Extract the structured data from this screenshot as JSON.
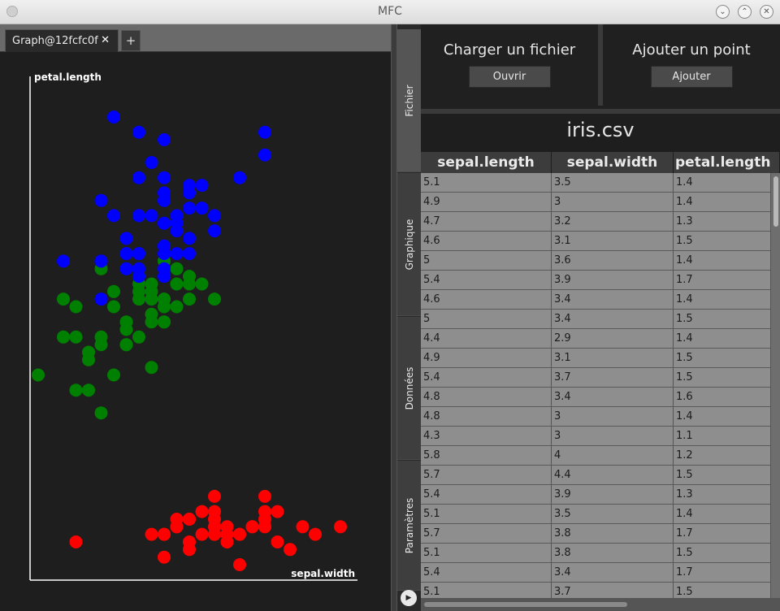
{
  "window": {
    "title": "MFC"
  },
  "tabs": [
    {
      "label": "Graph@12fcfc0f",
      "close": "✕"
    }
  ],
  "add_tab_label": "+",
  "side_tabs": [
    "Fichier",
    "Graphique",
    "Données",
    "Paramètres"
  ],
  "actions": {
    "load": {
      "title": "Charger un fichier",
      "button": "Ouvrir"
    },
    "add_point": {
      "title": "Ajouter un point",
      "button": "Ajouter"
    }
  },
  "file_name": "iris.csv",
  "table": {
    "columns": [
      "sepal.length",
      "sepal.width",
      "petal.length"
    ],
    "rows": [
      [
        "5.1",
        "3.5",
        "1.4"
      ],
      [
        "4.9",
        "3",
        "1.4"
      ],
      [
        "4.7",
        "3.2",
        "1.3"
      ],
      [
        "4.6",
        "3.1",
        "1.5"
      ],
      [
        "5",
        "3.6",
        "1.4"
      ],
      [
        "5.4",
        "3.9",
        "1.7"
      ],
      [
        "4.6",
        "3.4",
        "1.4"
      ],
      [
        "5",
        "3.4",
        "1.5"
      ],
      [
        "4.4",
        "2.9",
        "1.4"
      ],
      [
        "4.9",
        "3.1",
        "1.5"
      ],
      [
        "5.4",
        "3.7",
        "1.5"
      ],
      [
        "4.8",
        "3.4",
        "1.6"
      ],
      [
        "4.8",
        "3",
        "1.4"
      ],
      [
        "4.3",
        "3",
        "1.1"
      ],
      [
        "5.8",
        "4",
        "1.2"
      ],
      [
        "5.7",
        "4.4",
        "1.5"
      ],
      [
        "5.4",
        "3.9",
        "1.3"
      ],
      [
        "5.1",
        "3.5",
        "1.4"
      ],
      [
        "5.7",
        "3.8",
        "1.7"
      ],
      [
        "5.1",
        "3.8",
        "1.5"
      ],
      [
        "5.4",
        "3.4",
        "1.7"
      ],
      [
        "5.1",
        "3.7",
        "1.5"
      ]
    ]
  },
  "colors": {
    "setosa": "#ff0000",
    "versicolor": "#008000",
    "virginica": "#0000ff"
  },
  "chart_data": {
    "type": "scatter",
    "xlabel": "sepal.width",
    "ylabel": "petal.length",
    "xlim": [
      2.0,
      4.4
    ],
    "ylim": [
      1.0,
      6.9
    ],
    "grid": false,
    "series": [
      {
        "color": "#ff0000",
        "points": [
          [
            3.5,
            1.4
          ],
          [
            3,
            1.4
          ],
          [
            3.2,
            1.3
          ],
          [
            3.1,
            1.5
          ],
          [
            3.6,
            1.4
          ],
          [
            3.9,
            1.7
          ],
          [
            3.4,
            1.4
          ],
          [
            3.4,
            1.5
          ],
          [
            2.9,
            1.4
          ],
          [
            3.1,
            1.5
          ],
          [
            3.7,
            1.5
          ],
          [
            3.4,
            1.6
          ],
          [
            3,
            1.4
          ],
          [
            3,
            1.1
          ],
          [
            4,
            1.2
          ],
          [
            4.4,
            1.5
          ],
          [
            3.9,
            1.3
          ],
          [
            3.5,
            1.4
          ],
          [
            3.8,
            1.7
          ],
          [
            3.8,
            1.5
          ],
          [
            3.4,
            1.7
          ],
          [
            3.7,
            1.5
          ],
          [
            3.6,
            1
          ],
          [
            3.3,
            1.7
          ],
          [
            3.4,
            1.9
          ],
          [
            3.5,
            1.5
          ],
          [
            3.4,
            1.4
          ],
          [
            3.2,
            1.6
          ],
          [
            3.1,
            1.6
          ],
          [
            4.1,
            1.5
          ],
          [
            4.2,
            1.4
          ],
          [
            3.2,
            1.2
          ],
          [
            3.5,
            1.3
          ],
          [
            3.6,
            1.4
          ],
          [
            2.3,
            1.3
          ],
          [
            3.2,
            1.6
          ],
          [
            3.8,
            1.9
          ],
          [
            3.8,
            1.6
          ],
          [
            3.3,
            1.4
          ]
        ]
      },
      {
        "color": "#008000",
        "points": [
          [
            3.2,
            4.7
          ],
          [
            3.2,
            4.5
          ],
          [
            3.1,
            4.9
          ],
          [
            2.3,
            4
          ],
          [
            2.8,
            4.6
          ],
          [
            2.8,
            4.5
          ],
          [
            3.3,
            4.7
          ],
          [
            2.4,
            3.3
          ],
          [
            2.9,
            4.6
          ],
          [
            2.7,
            3.9
          ],
          [
            2,
            3.5
          ],
          [
            3,
            4.2
          ],
          [
            2.2,
            4
          ],
          [
            2.9,
            4.7
          ],
          [
            2.9,
            3.6
          ],
          [
            3.1,
            4.4
          ],
          [
            3,
            4.5
          ],
          [
            2.7,
            4.1
          ],
          [
            2.2,
            4.5
          ],
          [
            2.5,
            3.9
          ],
          [
            3.2,
            4.8
          ],
          [
            2.8,
            4
          ],
          [
            2.5,
            4.9
          ],
          [
            2.8,
            4.7
          ],
          [
            2.9,
            4.3
          ],
          [
            3,
            4.4
          ],
          [
            2.8,
            4.8
          ],
          [
            3,
            5
          ],
          [
            2.9,
            4.5
          ],
          [
            2.6,
            3.5
          ],
          [
            2.4,
            3.8
          ],
          [
            2.4,
            3.7
          ],
          [
            2.7,
            3.9
          ],
          [
            2.7,
            5.1
          ],
          [
            3,
            4.5
          ],
          [
            3.4,
            4.5
          ],
          [
            3.1,
            4.7
          ],
          [
            2.3,
            4.4
          ],
          [
            2.5,
            4
          ],
          [
            2.6,
            4.4
          ],
          [
            2.6,
            4.6
          ],
          [
            2.3,
            3.3
          ],
          [
            2.7,
            4.2
          ],
          [
            3,
            4.2
          ],
          [
            2.9,
            4.2
          ],
          [
            2.5,
            3
          ]
        ]
      },
      {
        "color": "#0000ff",
        "points": [
          [
            3.3,
            6
          ],
          [
            2.7,
            5.1
          ],
          [
            3,
            5.9
          ],
          [
            2.9,
            5.6
          ],
          [
            3,
            5.8
          ],
          [
            3,
            6.6
          ],
          [
            2.5,
            4.5
          ],
          [
            2.9,
            6.3
          ],
          [
            2.5,
            5.8
          ],
          [
            3.6,
            6.1
          ],
          [
            3.2,
            5.1
          ],
          [
            2.7,
            5.3
          ],
          [
            3,
            5.5
          ],
          [
            2.5,
            5
          ],
          [
            2.8,
            5.1
          ],
          [
            3.2,
            5.3
          ],
          [
            3,
            5.5
          ],
          [
            3.8,
            6.7
          ],
          [
            2.6,
            6.9
          ],
          [
            2.2,
            5
          ],
          [
            3.2,
            5.7
          ],
          [
            2.8,
            4.9
          ],
          [
            2.8,
            6.7
          ],
          [
            2.7,
            4.9
          ],
          [
            3.3,
            5.7
          ],
          [
            3.2,
            6
          ],
          [
            2.8,
            4.8
          ],
          [
            3,
            4.9
          ],
          [
            2.8,
            5.6
          ],
          [
            3,
            5.8
          ],
          [
            2.8,
            6.1
          ],
          [
            3.8,
            6.4
          ],
          [
            2.8,
            5.6
          ],
          [
            2.8,
            5.1
          ],
          [
            2.6,
            5.6
          ],
          [
            3,
            6.1
          ],
          [
            3.4,
            5.6
          ],
          [
            3.1,
            5.5
          ],
          [
            3,
            4.8
          ],
          [
            3.1,
            5.4
          ],
          [
            3.1,
            5.6
          ],
          [
            3.1,
            5.1
          ],
          [
            2.7,
            5.1
          ],
          [
            3.2,
            5.9
          ],
          [
            3.3,
            5.7
          ],
          [
            3,
            5.2
          ],
          [
            2.5,
            5
          ],
          [
            3,
            5.2
          ],
          [
            3.4,
            5.4
          ],
          [
            3,
            5.1
          ]
        ]
      }
    ]
  }
}
